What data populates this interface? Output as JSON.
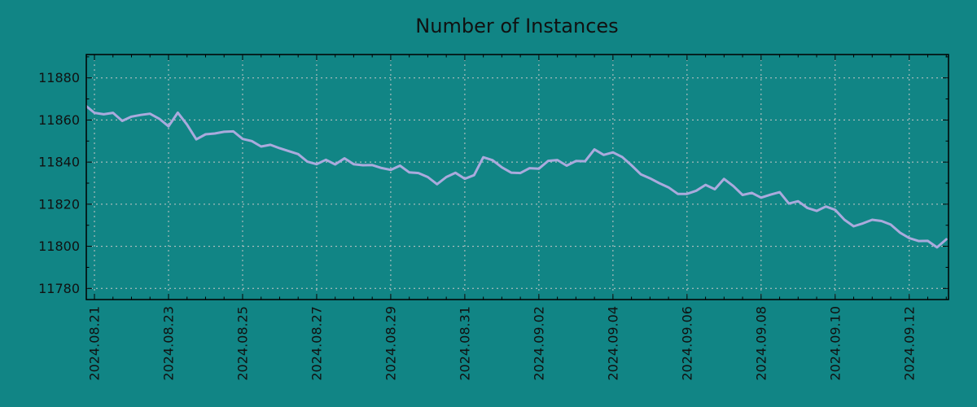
{
  "window": {
    "background_color": "#118585"
  },
  "chart_data": {
    "type": "line",
    "title": "Number of Instances",
    "colors": {
      "line": "#aaaadd",
      "grid": "#c8c8c8",
      "axis": "#000000",
      "text": "#111111"
    },
    "grid": {
      "visible": true,
      "style": "dashed"
    },
    "legend": "none",
    "x_axis": {
      "unit": "date",
      "tick_labels": [
        "2024.08.21",
        "2024.08.23",
        "2024.08.25",
        "2024.08.27",
        "2024.08.29",
        "2024.08.31",
        "2024.09.02",
        "2024.09.04",
        "2024.09.06",
        "2024.09.08",
        "2024.09.10",
        "2024.09.12"
      ],
      "tick_day_offsets": [
        0,
        2,
        4,
        6,
        8,
        10,
        12,
        14,
        16,
        18,
        20,
        22
      ],
      "minor_tick_interval_days": 0.5,
      "lim_days": [
        -0.22,
        23.06
      ]
    },
    "y_axis": {
      "tick_labels": [
        "11780",
        "11800",
        "11820",
        "11840",
        "11860",
        "11880"
      ],
      "tick_values": [
        11780,
        11800,
        11820,
        11840,
        11860,
        11880
      ],
      "minor_tick_interval": 10,
      "lim": [
        11774.7,
        11891.1
      ]
    },
    "series": [
      {
        "x_start_day": -0.25,
        "x_step_days": 0.25,
        "values": [
          11867.0,
          11863.4,
          11862.7,
          11863.4,
          11859.6,
          11861.6,
          11862.4,
          11863.0,
          11860.6,
          11857.0,
          11863.5,
          11857.8,
          11850.8,
          11853.2,
          11853.6,
          11854.4,
          11854.6,
          11851.0,
          11850.0,
          11847.4,
          11848.2,
          11846.6,
          11845.2,
          11843.8,
          11840.2,
          11839.0,
          11841.1,
          11838.9,
          11841.8,
          11839.0,
          11838.5,
          11838.6,
          11837.2,
          11836.3,
          11838.3,
          11835.1,
          11834.8,
          11832.9,
          11829.5,
          11832.9,
          11834.9,
          11832.1,
          11833.8,
          11842.3,
          11840.9,
          11837.5,
          11835.0,
          11834.8,
          11837.1,
          11836.9,
          11840.6,
          11841.0,
          11838.3,
          11840.5,
          11840.4,
          11846.0,
          11843.4,
          11844.6,
          11842.4,
          11838.5,
          11834.2,
          11832.3,
          11830.0,
          11828.0,
          11824.9,
          11824.9,
          11826.4,
          11829.2,
          11827.1,
          11832.0,
          11828.6,
          11824.4,
          11825.4,
          11823.1,
          11824.5,
          11825.7,
          11820.3,
          11821.4,
          11818.2,
          11816.8,
          11818.9,
          11817.3,
          11812.6,
          11809.5,
          11810.9,
          11812.6,
          11812.0,
          11810.3,
          11806.5,
          11803.9,
          11802.5,
          11802.6,
          11799.5,
          11803.3
        ]
      }
    ]
  }
}
